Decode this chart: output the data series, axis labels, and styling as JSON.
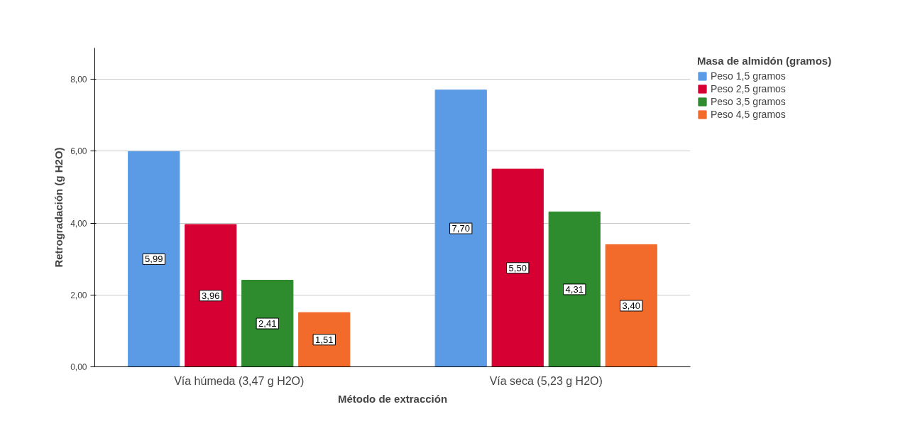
{
  "chart_data": {
    "type": "bar",
    "xlabel": "Método de extracción",
    "ylabel": "Retrogradación (g H2O)",
    "legend_title": "Masa de almidón (gramos)",
    "legend": "right",
    "grid": "y",
    "categories": [
      "Vía húmeda (3,47 g H2O)",
      "Vía seca (5,23 g H2O)"
    ],
    "ylim": [
      0,
      8.87
    ],
    "yticks": [
      {
        "value": 0,
        "label": "0,00"
      },
      {
        "value": 2,
        "label": "2,00"
      },
      {
        "value": 4,
        "label": "4,00"
      },
      {
        "value": 6,
        "label": "6,00"
      },
      {
        "value": 8,
        "label": "8,00"
      }
    ],
    "series": [
      {
        "name": "Peso 1,5 gramos",
        "color": "#5b9be6",
        "values": [
          5.99,
          7.7
        ],
        "value_labels": [
          "5,99",
          "7,70"
        ]
      },
      {
        "name": "Peso 2,5 gramos",
        "color": "#d60032",
        "values": [
          3.96,
          5.5
        ],
        "value_labels": [
          "3,96",
          "5,50"
        ]
      },
      {
        "name": "Peso 3,5 gramos",
        "color": "#2e8b2e",
        "values": [
          2.41,
          4.31
        ],
        "value_labels": [
          "2,41",
          "4,31"
        ]
      },
      {
        "name": "Peso 4,5 gramos",
        "color": "#f26b2a",
        "values": [
          1.51,
          3.4
        ],
        "value_labels": [
          "1,51",
          "3,40"
        ]
      }
    ]
  }
}
